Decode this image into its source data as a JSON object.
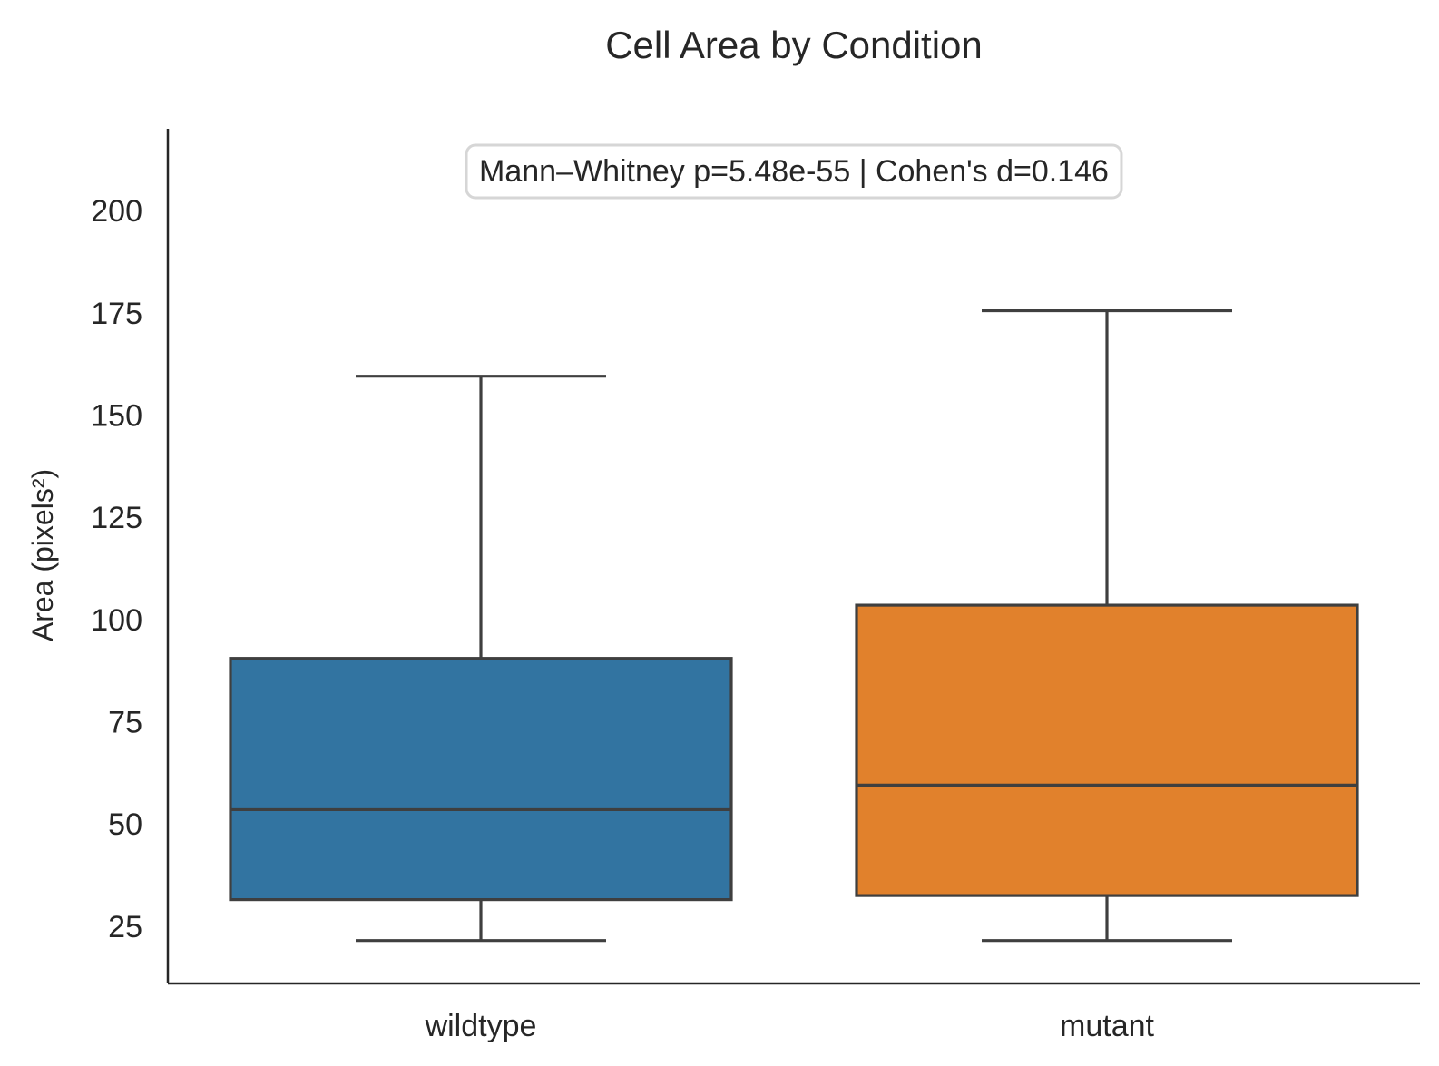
{
  "chart_data": {
    "type": "box",
    "title": "Cell Area by Condition",
    "xlabel": "",
    "ylabel": "Area (pixels²)",
    "categories": [
      "wildtype",
      "mutant"
    ],
    "boxes": [
      {
        "category": "wildtype",
        "whisker_low": 21.5,
        "q1": 31.5,
        "median": 53.5,
        "q3": 90.5,
        "whisker_high": 159.5,
        "color": "#3274a1"
      },
      {
        "category": "mutant",
        "whisker_low": 21.5,
        "q1": 32.5,
        "median": 59.5,
        "q3": 103.5,
        "whisker_high": 175.5,
        "color": "#e1812c"
      }
    ],
    "yticks": [
      25,
      50,
      75,
      100,
      125,
      150,
      175,
      200
    ],
    "ylim": [
      11,
      220
    ],
    "grid": false,
    "annotation": "Mann–Whitney p=5.48e-55  |  Cohen's d=0.146",
    "edge_color": "#3f3f3f",
    "axis_color": "#262626"
  }
}
